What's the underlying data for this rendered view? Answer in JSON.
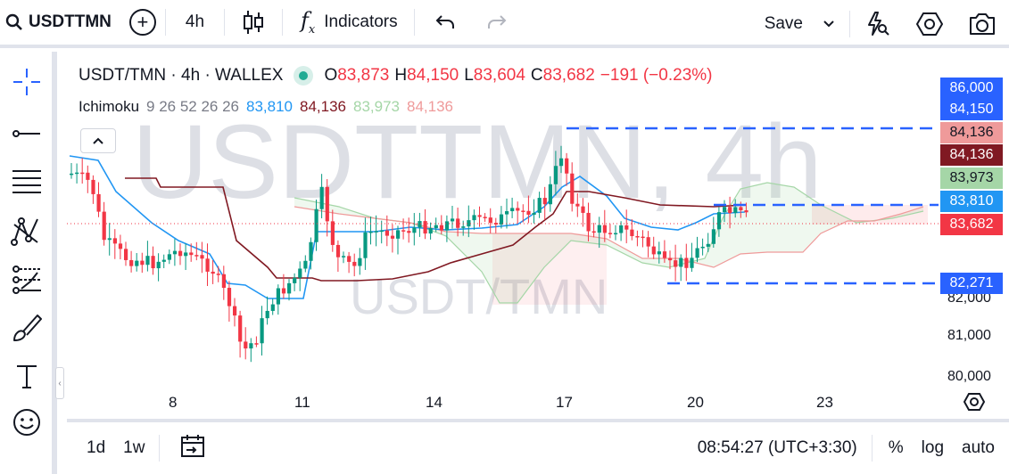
{
  "toolbar": {
    "symbol": "USDTTMN",
    "interval": "4h",
    "indicators_label": "Indicators",
    "save_label": "Save"
  },
  "legend": {
    "pair": "USDT/TMN · 4h · WALLEX",
    "o_label": "O",
    "o_value": "83,873",
    "h_label": "H",
    "h_value": "84,150",
    "l_label": "L",
    "l_value": "83,604",
    "c_label": "C",
    "c_value": "83,682",
    "change": "−191 (−0.23%)"
  },
  "indicator": {
    "name": "Ichimoku",
    "params": "9 26 52 26 26",
    "v1": "83,810",
    "v2": "84,136",
    "v3": "83,973",
    "v4": "84,136",
    "colors": {
      "v1": "#2196f3",
      "v2": "#801922",
      "v3": "#a5d6a7",
      "v4": "#ef9a9a"
    }
  },
  "watermark": {
    "big": "USDTTMN, 4h",
    "small": "USDT/TMN"
  },
  "price_labels": [
    {
      "text": "86,000",
      "color": "#2962ff"
    },
    {
      "text": "84,150",
      "color": "#2962ff"
    },
    {
      "text": "84,136",
      "color": "#ef9a9a",
      "text_color": "#131722"
    },
    {
      "text": "84,136",
      "color": "#801922"
    },
    {
      "text": "83,973",
      "color": "#a5d6a7",
      "text_color": "#131722"
    },
    {
      "text": "83,810",
      "color": "#2196f3"
    },
    {
      "text": "83,682",
      "color": "#f23645"
    },
    {
      "text": "82,271",
      "color": "#2962ff"
    }
  ],
  "price_axis": [
    "82,000",
    "81,000",
    "80,000"
  ],
  "time_axis": [
    "8",
    "11",
    "14",
    "17",
    "20",
    "23"
  ],
  "bottom": {
    "range_1d": "1d",
    "range_1w": "1w",
    "clock": "08:54:27 (UTC+3:30)",
    "percent": "%",
    "log": "log",
    "auto": "auto"
  },
  "colors": {
    "up": "#089981",
    "down": "#f23645",
    "accent": "#2962ff"
  }
}
